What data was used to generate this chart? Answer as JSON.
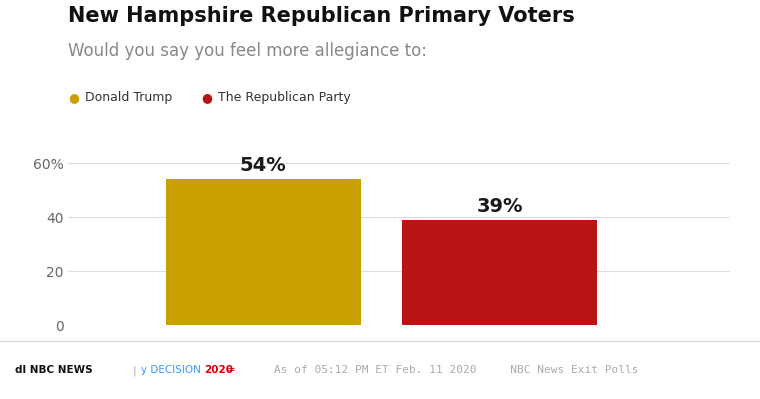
{
  "title": "New Hampshire Republican Primary Voters",
  "subtitle": "Would you say you feel more allegiance to:",
  "categories": [
    "Donald Trump",
    "The Republican Party"
  ],
  "values": [
    54,
    39
  ],
  "bar_colors": [
    "#C9A000",
    "#B81414"
  ],
  "legend_dot_colors": [
    "#C9A000",
    "#B81414"
  ],
  "bar_labels": [
    "54%",
    "39%"
  ],
  "yticks": [
    0,
    20,
    40,
    60
  ],
  "ytick_labels": [
    "0",
    "20",
    "40",
    "60%"
  ],
  "ylim": [
    0,
    65
  ],
  "background_color": "#ffffff",
  "title_fontsize": 15,
  "subtitle_fontsize": 12,
  "label_fontsize": 14,
  "legend_fontsize": 9,
  "ytick_fontsize": 10,
  "footer_text": "As of 05:12 PM ET Feb. 11 2020     NBC News Exit Polls",
  "footer_color": "#aaaaaa",
  "grid_color": "#dddddd",
  "bar_positions": [
    0.28,
    0.62
  ],
  "bar_width": 0.28,
  "xlim": [
    0.0,
    0.95
  ]
}
